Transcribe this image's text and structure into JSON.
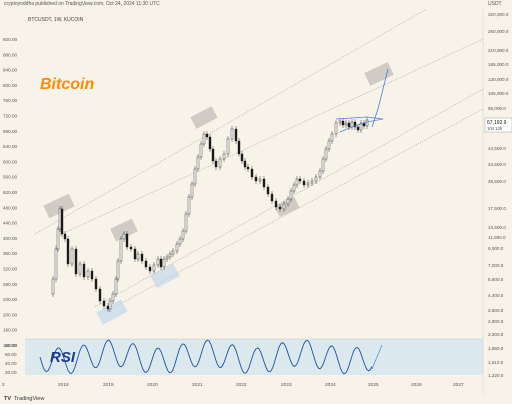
{
  "header": {
    "publisher": "cryptoyoddha published on TradingView.com, Oct 24, 2024 11:30 UTC",
    "currency": "USDT"
  },
  "symbol": "BTCUSDT, 1W, KUCOIN",
  "annotations": {
    "title": "Bitcoin",
    "rsi": "RSI"
  },
  "colors": {
    "background": "#f7f3e8",
    "candle": "#1a1a1a",
    "channel_line": "#8a8a8a",
    "projection": "#4a7fd6",
    "title": "#ff8c00",
    "rsi_label": "#1e3a8a",
    "rsi_line": "#1f4fa0",
    "rsi_band": "#dbe9ee",
    "box": "#b5b0ad",
    "price_tag_bg": "#ffffff"
  },
  "left_axis": [
    "920.00",
    "880.00",
    "840.00",
    "800.00",
    "760.00",
    "720.00",
    "680.00",
    "640.00",
    "600.00",
    "560.00",
    "520.00",
    "480.00",
    "440.00",
    "400.00",
    "360.00",
    "320.00",
    "280.00",
    "240.00",
    "200.00",
    "160.00",
    "120.00"
  ],
  "right_axis": [
    "320,000.0",
    "260,000.0",
    "210,000.0",
    "165,000.0",
    "130,000.0",
    "105,000.0",
    "85,000.0",
    "67,192.9",
    "44,500.0",
    "34,500.0",
    "26,500.0",
    "17,500.0",
    "13,500.0",
    "11,000.0",
    "9,000.0",
    "7,000.0",
    "5,600.0",
    "4,400.0",
    "3,600.0",
    "2,900.0",
    "2,300.0",
    "1,860.0",
    "1,510.0",
    "1,220.0"
  ],
  "price_tag": {
    "value": "67,192.9",
    "sub": "104 13h"
  },
  "rsi_axis": [
    "80.00",
    "60.00",
    "40.00",
    "20.00"
  ],
  "x_axis": [
    "2",
    "2018",
    "2019",
    "2020",
    "2021",
    "2022",
    "2023",
    "2024",
    "2025",
    "2026",
    "2027"
  ],
  "footer": {
    "logo": "TV",
    "text": "TradingView"
  },
  "chart_data": {
    "type": "line",
    "title": "",
    "xlabel": "",
    "ylabel": "",
    "x": [
      "2017",
      "2018",
      "2019",
      "2020",
      "2021",
      "2022",
      "2023",
      "2024",
      "2025"
    ],
    "series": [
      {
        "values": [
          2000,
          19000,
          3300,
          5000,
          64000,
          16000,
          26000,
          67192.9,
          130000
        ]
      }
    ],
    "rsi": {
      "range": [
        0,
        100
      ],
      "levels": [
        80,
        60,
        40,
        20
      ]
    }
  }
}
